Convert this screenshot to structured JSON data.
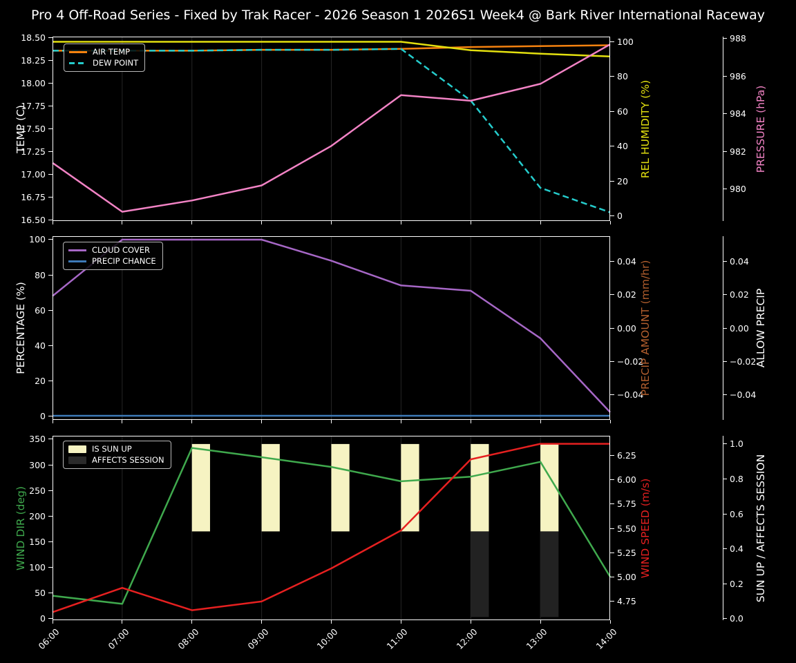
{
  "figure": {
    "title": "Pro 4 Off-Road Series - Fixed by Trak Racer - 2026 Season 1 2026S1 Week4 @ Bark River International Raceway",
    "background": "#000000",
    "text_color": "#ffffff",
    "spine_color": "#ffffff",
    "gridline_color": "#262626"
  },
  "chart_data": [
    {
      "id": "temperature-humidity-pressure",
      "type": "line",
      "x_hours": [
        6,
        7,
        8,
        9,
        10,
        11,
        12,
        13,
        14
      ],
      "x_tick_labels": [
        "06:00",
        "07:00",
        "08:00",
        "09:00",
        "10:00",
        "11:00",
        "12:00",
        "13:00",
        "14:00"
      ],
      "x_tick_labels_visible": false,
      "axes": [
        {
          "id": "temp",
          "side": "left",
          "label": "TEMP (C)",
          "label_color": "#ffffff",
          "ylim": [
            16.485,
            18.515
          ],
          "ticks": [
            16.5,
            16.75,
            17.0,
            17.25,
            17.5,
            17.75,
            18.0,
            18.25,
            18.5
          ],
          "tick_labels": [
            "16.50",
            "16.75",
            "17.00",
            "17.25",
            "17.50",
            "17.75",
            "18.00",
            "18.25",
            "18.50"
          ]
        },
        {
          "id": "humidity",
          "side": "right_inner",
          "label": "REL HUMIDITY (%)",
          "label_color": "#e3e00f",
          "ylim": [
            -2.77,
            102.77
          ],
          "ticks": [
            0,
            20,
            40,
            60,
            80,
            100
          ],
          "tick_labels": [
            "0",
            "20",
            "40",
            "60",
            "80",
            "100"
          ]
        },
        {
          "id": "pressure",
          "side": "right_outer",
          "label": "PRESSURE (hPa)",
          "label_color": "#f283c5",
          "ylim": [
            978.31,
            988.11
          ],
          "ticks": [
            980,
            982,
            984,
            986,
            988
          ],
          "tick_labels": [
            "980",
            "982",
            "984",
            "986",
            "988"
          ]
        }
      ],
      "series": [
        {
          "name": "AIR TEMP",
          "axis": "temp",
          "color": "#f5820f",
          "dashed": false,
          "values": [
            18.36,
            18.36,
            18.36,
            18.37,
            18.37,
            18.38,
            18.4,
            18.41,
            18.42
          ]
        },
        {
          "name": "DEW POINT",
          "axis": "temp",
          "color": "#25cccc",
          "dashed": true,
          "values": [
            18.36,
            18.36,
            18.36,
            18.37,
            18.37,
            18.38,
            17.81,
            16.85,
            16.58
          ]
        },
        {
          "name": "REL HUMIDITY",
          "axis": "humidity",
          "color": "#e3e00f",
          "dashed": false,
          "values": [
            99.8,
            99.8,
            99.8,
            99.8,
            99.8,
            99.8,
            95.0,
            93.0,
            91.4
          ]
        },
        {
          "name": "PRESSURE",
          "axis": "pressure",
          "color": "#f283c5",
          "dashed": false,
          "values": [
            981.4,
            978.8,
            979.4,
            980.2,
            982.3,
            985.0,
            984.7,
            985.6,
            987.7
          ]
        }
      ],
      "legend": [
        {
          "label": "AIR TEMP",
          "swatch": "line",
          "color": "#f5820f"
        },
        {
          "label": "DEW POINT",
          "swatch": "dashed_line",
          "color": "#25cccc"
        }
      ]
    },
    {
      "id": "cloud-precip",
      "type": "line",
      "x_hours": [
        6,
        7,
        8,
        9,
        10,
        11,
        12,
        13,
        14
      ],
      "x_tick_labels": [
        "06:00",
        "07:00",
        "08:00",
        "09:00",
        "10:00",
        "11:00",
        "12:00",
        "13:00",
        "14:00"
      ],
      "x_tick_labels_visible": false,
      "axes": [
        {
          "id": "pct",
          "side": "left",
          "label": "PERCENTAGE (%)",
          "label_color": "#ffffff",
          "ylim": [
            -2.35,
            101.96
          ],
          "ticks": [
            0,
            20,
            40,
            60,
            80,
            100
          ],
          "tick_labels": [
            "0",
            "20",
            "40",
            "60",
            "80",
            "100"
          ]
        },
        {
          "id": "precip_amount",
          "side": "right_inner",
          "label": "PRECIP AMOUNT (mm/hr)",
          "label_color": "#b35f2e",
          "ylim": [
            -0.0549,
            0.0549
          ],
          "ticks": [
            0.04,
            0.02,
            0.0,
            -0.02,
            -0.04
          ],
          "tick_labels": [
            "0.04",
            "0.02",
            "0.00",
            "−0.02",
            "−0.04"
          ]
        },
        {
          "id": "allow_precip",
          "side": "right_outer",
          "label": "ALLOW PRECIP",
          "label_color": "#ffffff",
          "ylim": [
            -0.0549,
            0.0549
          ],
          "ticks": [
            0.04,
            0.02,
            0.0,
            -0.02,
            -0.04
          ],
          "tick_labels": [
            "0.04",
            "0.02",
            "0.00",
            "−0.02",
            "−0.04"
          ]
        }
      ],
      "series": [
        {
          "name": "CLOUD COVER",
          "axis": "pct",
          "color": "#a667c6",
          "dashed": false,
          "values": [
            68,
            100,
            100,
            100,
            88,
            74,
            71,
            44,
            2
          ]
        },
        {
          "name": "PRECIP CHANCE",
          "axis": "pct",
          "color": "#3d7ab8",
          "dashed": false,
          "values": [
            0,
            0,
            0,
            0,
            0,
            0,
            0,
            0,
            0
          ]
        }
      ],
      "legend": [
        {
          "label": "CLOUD COVER",
          "swatch": "line",
          "color": "#a667c6"
        },
        {
          "label": "PRECIP CHANCE",
          "swatch": "line",
          "color": "#3d7ab8"
        }
      ]
    },
    {
      "id": "wind-sun",
      "type": "line",
      "x_hours": [
        6,
        7,
        8,
        9,
        10,
        11,
        12,
        13,
        14
      ],
      "x_tick_labels": [
        "06:00",
        "07:00",
        "08:00",
        "09:00",
        "10:00",
        "11:00",
        "12:00",
        "13:00",
        "14:00"
      ],
      "x_tick_labels_visible": true,
      "axes": [
        {
          "id": "wind_dir",
          "side": "left",
          "label": "WIND DIR (deg)",
          "label_color": "#3fa94d",
          "ylim": [
            -2.7,
            356.7
          ],
          "ticks": [
            0,
            50,
            100,
            150,
            200,
            250,
            300,
            350
          ],
          "tick_labels": [
            "0",
            "50",
            "100",
            "150",
            "200",
            "250",
            "300",
            "350"
          ]
        },
        {
          "id": "wind_speed",
          "side": "right_inner",
          "label": "WIND SPEED (m/s)",
          "label_color": "#e62020",
          "ylim": [
            4.558,
            6.452
          ],
          "ticks": [
            4.75,
            5.0,
            5.25,
            5.5,
            5.75,
            6.0,
            6.25
          ],
          "tick_labels": [
            "4.75",
            "5.00",
            "5.25",
            "5.50",
            "5.75",
            "6.00",
            "6.25"
          ]
        },
        {
          "id": "sun",
          "side": "right_outer",
          "label": "SUN UP / AFFECTS SESSION",
          "label_color": "#ffffff",
          "ylim": [
            -0.008,
            1.047
          ],
          "ticks": [
            0.0,
            0.2,
            0.4,
            0.6,
            0.8,
            1.0
          ],
          "tick_labels": [
            "0.0",
            "0.2",
            "0.4",
            "0.6",
            "0.8",
            "1.0"
          ]
        }
      ],
      "bars": [
        {
          "name": "IS SUN UP",
          "axis": "sun",
          "color": "#f6f3c2",
          "hours": [
            8,
            9,
            10,
            11,
            12,
            13
          ],
          "span": [
            0.5,
            1.0
          ],
          "width_hours": 0.26
        },
        {
          "name": "AFFECTS SESSION",
          "axis": "sun",
          "color": "#222222",
          "hours": [
            12,
            13
          ],
          "span": [
            0.01,
            0.5
          ],
          "width_hours": 0.26
        }
      ],
      "series": [
        {
          "name": "WIND DIR",
          "axis": "wind_dir",
          "color": "#3fa94d",
          "dashed": false,
          "values": [
            45,
            29,
            333,
            315,
            296,
            268,
            277,
            306,
            82
          ]
        },
        {
          "name": "WIND SPEED",
          "axis": "wind_speed",
          "color": "#e62020",
          "dashed": false,
          "values": [
            4.64,
            4.89,
            4.66,
            4.75,
            5.09,
            5.48,
            6.21,
            6.37,
            6.37
          ]
        }
      ],
      "legend": [
        {
          "label": "IS SUN UP",
          "swatch": "patch",
          "color": "#f6f3c2"
        },
        {
          "label": "AFFECTS SESSION",
          "swatch": "patch",
          "color": "#2a2a2a"
        }
      ]
    }
  ]
}
